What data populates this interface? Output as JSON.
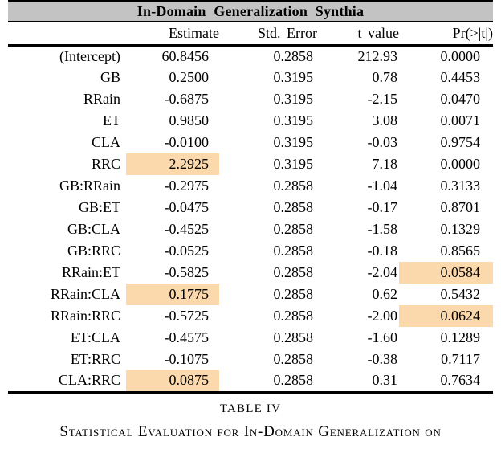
{
  "colors": {
    "header_bg": "#c3c3c3",
    "highlight": "#fbd9ac"
  },
  "table": {
    "title": "In-Domain Generalization Synthia",
    "columns": [
      "",
      "Estimate",
      "Std. Error",
      "t value",
      "Pr(>|t|)"
    ],
    "rows": [
      {
        "label": "(Intercept)",
        "estimate": "60.8456",
        "std_error": "0.2858",
        "t_value": "212.93",
        "pr": "0.0000",
        "hl_estimate": false,
        "hl_pr": false
      },
      {
        "label": "GB",
        "estimate": "0.2500",
        "std_error": "0.3195",
        "t_value": "0.78",
        "pr": "0.4453",
        "hl_estimate": false,
        "hl_pr": false
      },
      {
        "label": "RRain",
        "estimate": "-0.6875",
        "std_error": "0.3195",
        "t_value": "-2.15",
        "pr": "0.0470",
        "hl_estimate": false,
        "hl_pr": false
      },
      {
        "label": "ET",
        "estimate": "0.9850",
        "std_error": "0.3195",
        "t_value": "3.08",
        "pr": "0.0071",
        "hl_estimate": false,
        "hl_pr": false
      },
      {
        "label": "CLA",
        "estimate": "-0.0100",
        "std_error": "0.3195",
        "t_value": "-0.03",
        "pr": "0.9754",
        "hl_estimate": false,
        "hl_pr": false
      },
      {
        "label": "RRC",
        "estimate": "2.2925",
        "std_error": "0.3195",
        "t_value": "7.18",
        "pr": "0.0000",
        "hl_estimate": true,
        "hl_pr": false
      },
      {
        "label": "GB:RRain",
        "estimate": "-0.2975",
        "std_error": "0.2858",
        "t_value": "-1.04",
        "pr": "0.3133",
        "hl_estimate": false,
        "hl_pr": false
      },
      {
        "label": "GB:ET",
        "estimate": "-0.0475",
        "std_error": "0.2858",
        "t_value": "-0.17",
        "pr": "0.8701",
        "hl_estimate": false,
        "hl_pr": false
      },
      {
        "label": "GB:CLA",
        "estimate": "-0.4525",
        "std_error": "0.2858",
        "t_value": "-1.58",
        "pr": "0.1329",
        "hl_estimate": false,
        "hl_pr": false
      },
      {
        "label": "GB:RRC",
        "estimate": "-0.0525",
        "std_error": "0.2858",
        "t_value": "-0.18",
        "pr": "0.8565",
        "hl_estimate": false,
        "hl_pr": false
      },
      {
        "label": "RRain:ET",
        "estimate": "-0.5825",
        "std_error": "0.2858",
        "t_value": "-2.04",
        "pr": "0.0584",
        "hl_estimate": false,
        "hl_pr": true
      },
      {
        "label": "RRain:CLA",
        "estimate": "0.1775",
        "std_error": "0.2858",
        "t_value": "0.62",
        "pr": "0.5432",
        "hl_estimate": true,
        "hl_pr": false
      },
      {
        "label": "RRain:RRC",
        "estimate": "-0.5725",
        "std_error": "0.2858",
        "t_value": "-2.00",
        "pr": "0.0624",
        "hl_estimate": false,
        "hl_pr": true
      },
      {
        "label": "ET:CLA",
        "estimate": "-0.4575",
        "std_error": "0.2858",
        "t_value": "-1.60",
        "pr": "0.1289",
        "hl_estimate": false,
        "hl_pr": false
      },
      {
        "label": "ET:RRC",
        "estimate": "-0.1075",
        "std_error": "0.2858",
        "t_value": "-0.38",
        "pr": "0.7117",
        "hl_estimate": false,
        "hl_pr": false
      },
      {
        "label": "CLA:RRC",
        "estimate": "0.0875",
        "std_error": "0.2858",
        "t_value": "0.31",
        "pr": "0.7634",
        "hl_estimate": true,
        "hl_pr": false
      }
    ]
  },
  "caption": {
    "label": "TABLE IV",
    "text": "Statistical Evaluation for In-Domain Generalization on"
  }
}
